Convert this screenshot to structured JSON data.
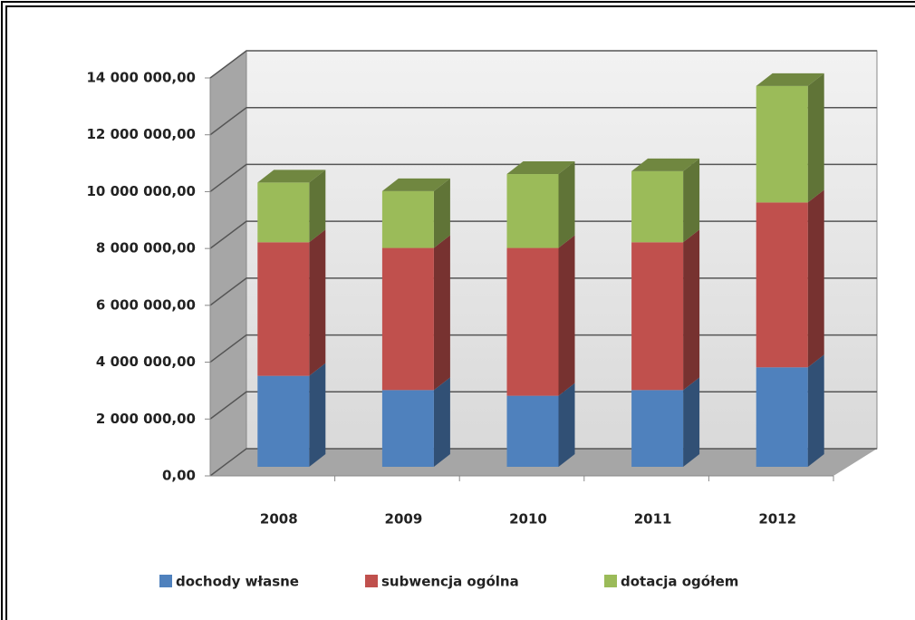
{
  "chart_data": {
    "type": "bar3d_stacked",
    "categories": [
      "2008",
      "2009",
      "2010",
      "2011",
      "2012"
    ],
    "series": [
      {
        "name": "dochody własne",
        "color": "#4f81bd",
        "values": [
          3200000,
          2700000,
          2500000,
          2700000,
          3500000
        ]
      },
      {
        "name": "subwencja ogólna",
        "color": "#c0504d",
        "values": [
          4700000,
          5000000,
          5200000,
          5200000,
          5800000
        ]
      },
      {
        "name": "dotacja ogółem",
        "color": "#9bbb59",
        "values": [
          2100000,
          2000000,
          2600000,
          2500000,
          4100000
        ]
      }
    ],
    "ylim": [
      0,
      14000000
    ],
    "yticks": [
      {
        "value": 0,
        "label": "0,00"
      },
      {
        "value": 2000000,
        "label": "2 000 000,00"
      },
      {
        "value": 4000000,
        "label": "4 000 000,00"
      },
      {
        "value": 6000000,
        "label": "6 000 000,00"
      },
      {
        "value": 8000000,
        "label": "8 000 000,00"
      },
      {
        "value": 10000000,
        "label": "10 000 000,00"
      },
      {
        "value": 12000000,
        "label": "12 000 000,00"
      },
      {
        "value": 14000000,
        "label": "14 000 000,00"
      }
    ],
    "grid": true,
    "legend": "bottom"
  }
}
